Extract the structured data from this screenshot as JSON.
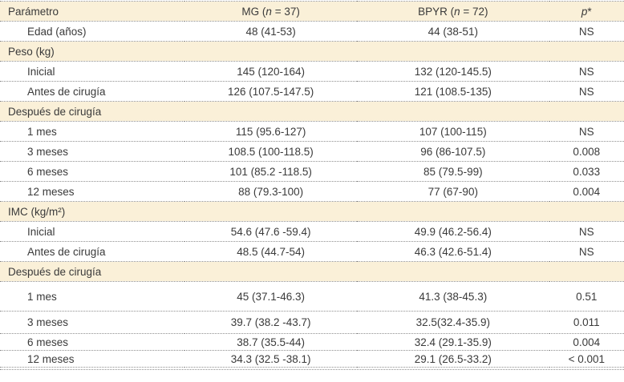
{
  "page": {
    "background": "#ffffff"
  },
  "table": {
    "colors": {
      "section_bg": "#faf0d8",
      "text": "#3a3a3a",
      "line": "#8f8f8f"
    },
    "columns": [
      {
        "key": "param",
        "label": "Parámetro"
      },
      {
        "key": "mg",
        "label": "MG (*n* = 37)"
      },
      {
        "key": "bpyr",
        "label": "BPYR (*n* = 72)"
      },
      {
        "key": "p",
        "label": "*p**"
      }
    ],
    "rows": [
      {
        "type": "data",
        "cells": [
          "Edad (años)",
          "48 (41-53)",
          "44 (38-51)",
          "NS"
        ]
      },
      {
        "type": "section",
        "label": "Peso (kg)"
      },
      {
        "type": "data",
        "cells": [
          "Inicial",
          "145 (120-164)",
          "132 (120-145.5)",
          "NS"
        ]
      },
      {
        "type": "data",
        "cells": [
          "Antes de cirugía",
          "126 (107.5-147.5)",
          "121 (108.5-135)",
          "NS"
        ]
      },
      {
        "type": "section",
        "label": "Después de cirugía"
      },
      {
        "type": "data",
        "cells": [
          "1 mes",
          "115 (95.6-127)",
          "107 (100-115)",
          "NS"
        ]
      },
      {
        "type": "data",
        "cells": [
          "3 meses",
          "108.5 (100-118.5)",
          "96 (86-107.5)",
          "0.008"
        ]
      },
      {
        "type": "data",
        "cells": [
          "6 meses",
          "101 (85.2 -118.5)",
          "85 (79.5-99)",
          "0.033"
        ]
      },
      {
        "type": "data",
        "cells": [
          "12 meses",
          "88 (79.3-100)",
          "77 (67-90)",
          "0.004"
        ]
      },
      {
        "type": "section",
        "label": "IMC (kg/m²)"
      },
      {
        "type": "data",
        "cells": [
          "Inicial",
          "54.6 (47.6 -59.4)",
          "49.9 (46.2-56.4)",
          "NS"
        ]
      },
      {
        "type": "data",
        "cells": [
          "Antes de cirugía",
          "48.5 (44.7-54)",
          "46.3 (42.6-51.4)",
          "NS"
        ]
      },
      {
        "type": "section",
        "label": "Después de cirugía"
      },
      {
        "type": "data",
        "size": "tall",
        "cells": [
          "1 mes",
          "45 (37.1-46.3)",
          "41.3 (38-45.3)",
          "0.51"
        ]
      },
      {
        "type": "data",
        "size": "medium",
        "cells": [
          "3 meses",
          "39.7 (38.2 -43.7)",
          "32.5(32.4-35.9)",
          "0.011"
        ]
      },
      {
        "type": "data",
        "size": "short",
        "cells": [
          "6 meses",
          "38.7 (35.5-44)",
          "32.4 (29.1-35.9)",
          "0.004"
        ]
      },
      {
        "type": "data",
        "size": "short",
        "cells": [
          "12 meses",
          "34.3 (32.5 -38.1)",
          "29.1 (26.5-33.2)",
          "< 0.001"
        ]
      }
    ]
  }
}
